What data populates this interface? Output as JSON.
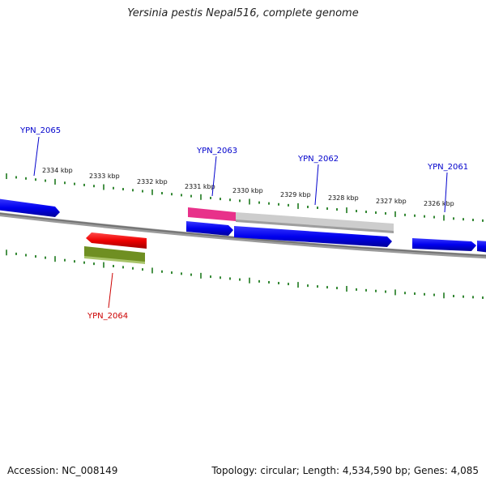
{
  "title": "Yersinia pestis Nepal516, complete genome",
  "footer": {
    "accession": "Accession: NC_008149",
    "summary": "Topology: circular; Length: 4,534,590 bp; Genes: 4,085"
  },
  "colors": {
    "backbone": "#8a8a8a",
    "ticks": "#1e7a1e",
    "forward_gene": "#0000ee",
    "reverse_gene": "#ee0000",
    "label_blue": "#0000cc",
    "label_red": "#cc0000",
    "feature_pink": "#e8318a",
    "feature_gray": "#c8c8c8",
    "feature_olive": "#6b8e23"
  },
  "scale": {
    "unit": "kbp",
    "ticks": [
      "2334 kbp",
      "2333 kbp",
      "2332 kbp",
      "2331 kbp",
      "2330 kbp",
      "2329 kbp",
      "2328 kbp",
      "2327 kbp",
      "2326 kbp"
    ]
  },
  "genes": {
    "YPN_2065": "YPN_2065",
    "YPN_2064": "YPN_2064",
    "YPN_2063": "YPN_2063",
    "YPN_2062": "YPN_2062",
    "YPN_2061": "YPN_2061"
  }
}
